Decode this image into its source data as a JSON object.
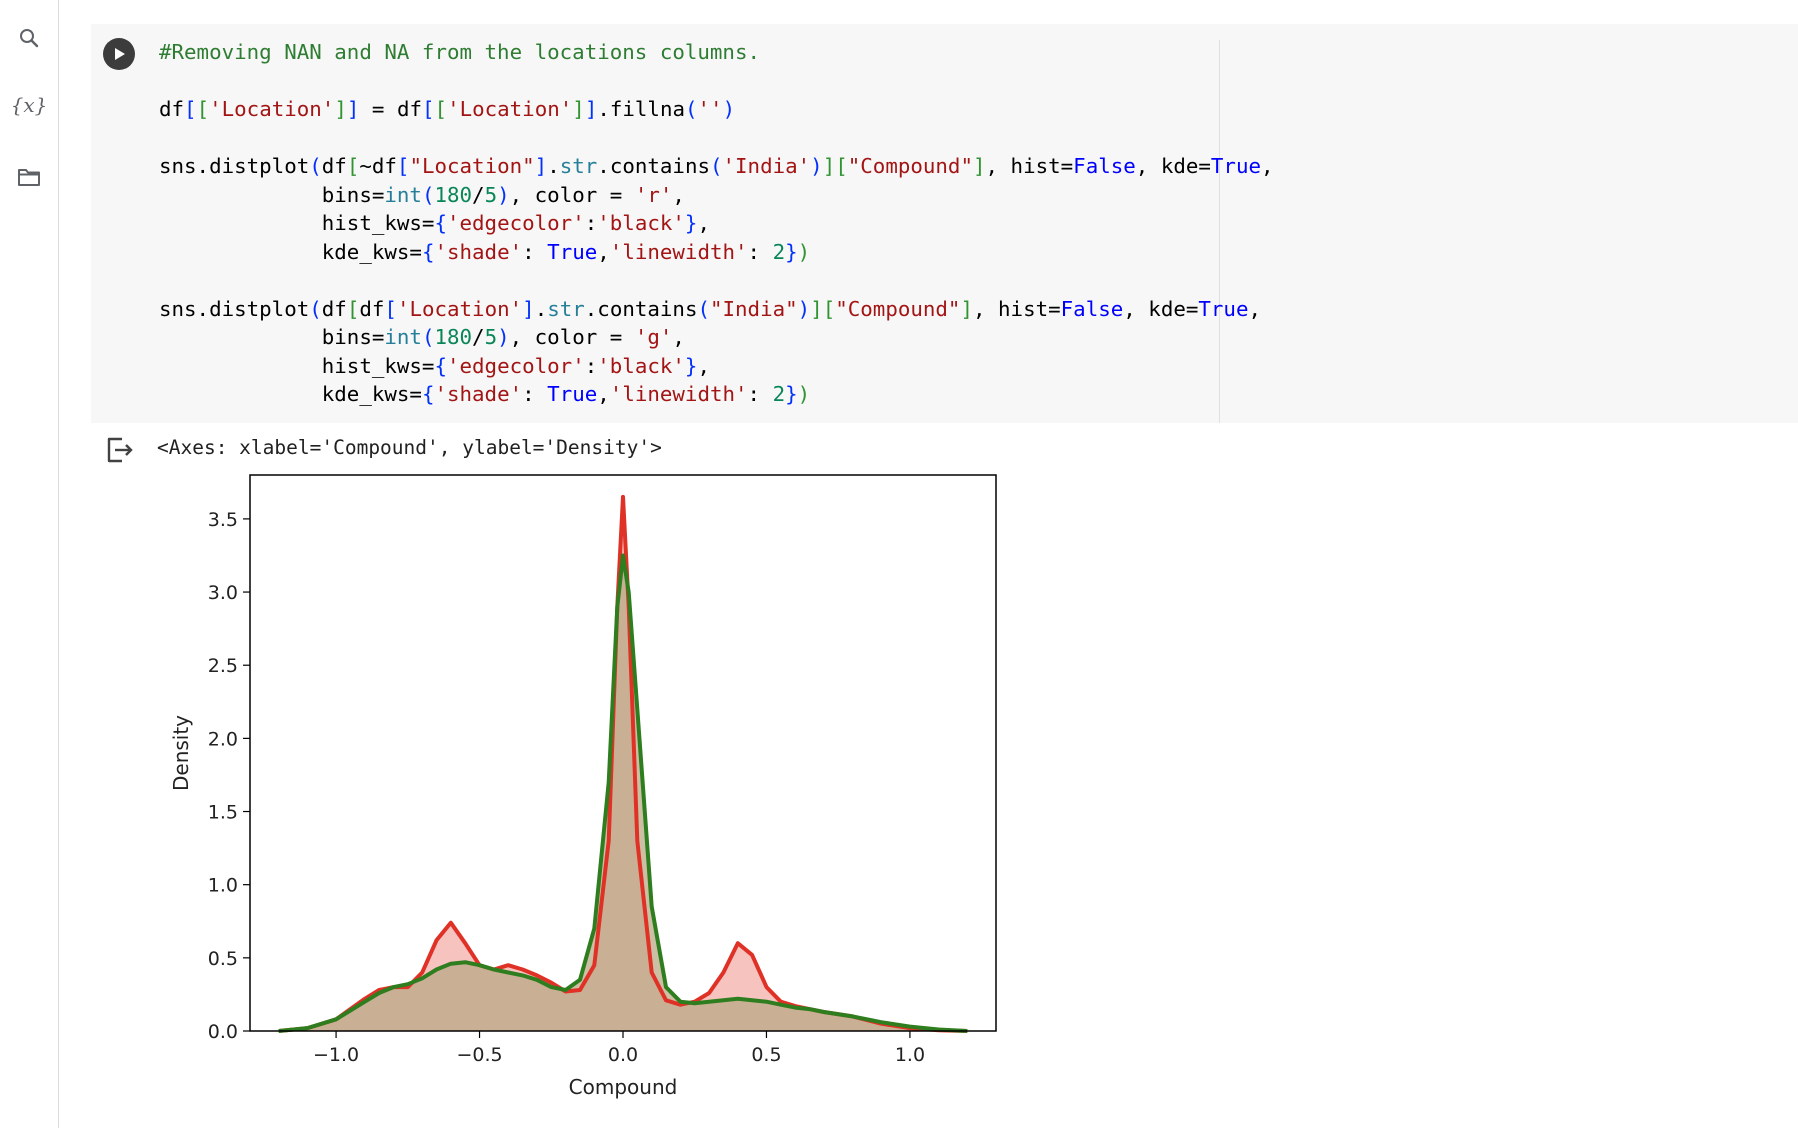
{
  "sidebar": {
    "items": [
      {
        "name": "search-icon"
      },
      {
        "name": "variables-icon",
        "label": "{x}"
      },
      {
        "name": "folder-icon"
      }
    ]
  },
  "cell": {
    "lines": [
      "#Removing NAN and NA from the locations columns.",
      "",
      "df[['Location']] = df[['Location']].fillna('')",
      "",
      "sns.distplot(df[~df[\"Location\"].str.contains('India')][\"Compound\"], hist=False, kde=True,",
      "             bins=int(180/5), color = 'r',",
      "             hist_kws={'edgecolor':'black'},",
      "             kde_kws={'shade': True,'linewidth': 2})",
      "",
      "sns.distplot(df[df['Location'].str.contains(\"India\")][\"Compound\"], hist=False, kde=True,",
      "             bins=int(180/5), color = 'g',",
      "             hist_kws={'edgecolor':'black'},",
      "             kde_kws={'shade': True,'linewidth': 2})"
    ]
  },
  "output": {
    "text": "<Axes: xlabel='Compound', ylabel='Density'>"
  },
  "colors": {
    "red_line": "#e03127",
    "red_fill": "#f4b8b4",
    "green_line": "#2e7d1e",
    "green_fill": "#b9a986"
  },
  "chart_data": {
    "type": "area",
    "xlabel": "Compound",
    "ylabel": "Density",
    "xlim": [
      -1.3,
      1.3
    ],
    "ylim": [
      0,
      3.8
    ],
    "xticks": [
      "−1.0",
      "−0.5",
      "0.0",
      "0.5",
      "1.0"
    ],
    "xtick_values": [
      -1.0,
      -0.5,
      0.0,
      0.5,
      1.0
    ],
    "yticks": [
      "0.0",
      "0.5",
      "1.0",
      "1.5",
      "2.0",
      "2.5",
      "3.0",
      "3.5"
    ],
    "ytick_values": [
      0,
      0.5,
      1.0,
      1.5,
      2.0,
      2.5,
      3.0,
      3.5
    ],
    "grid": false,
    "series": [
      {
        "color": "r",
        "x": [
          -1.2,
          -1.1,
          -1.0,
          -0.9,
          -0.85,
          -0.8,
          -0.75,
          -0.7,
          -0.65,
          -0.6,
          -0.55,
          -0.5,
          -0.45,
          -0.4,
          -0.35,
          -0.3,
          -0.25,
          -0.2,
          -0.15,
          -0.1,
          -0.05,
          -0.02,
          0.0,
          0.02,
          0.05,
          0.1,
          0.15,
          0.2,
          0.25,
          0.3,
          0.35,
          0.4,
          0.45,
          0.5,
          0.55,
          0.6,
          0.65,
          0.7,
          0.8,
          0.9,
          1.0,
          1.1,
          1.2
        ],
        "y": [
          0.0,
          0.02,
          0.08,
          0.22,
          0.28,
          0.3,
          0.3,
          0.4,
          0.62,
          0.74,
          0.6,
          0.45,
          0.42,
          0.45,
          0.42,
          0.38,
          0.33,
          0.27,
          0.28,
          0.45,
          1.3,
          2.9,
          3.65,
          2.9,
          1.3,
          0.4,
          0.21,
          0.18,
          0.2,
          0.26,
          0.4,
          0.6,
          0.52,
          0.3,
          0.2,
          0.17,
          0.15,
          0.13,
          0.1,
          0.05,
          0.02,
          0.005,
          0.0
        ]
      },
      {
        "color": "g",
        "x": [
          -1.2,
          -1.1,
          -1.0,
          -0.9,
          -0.85,
          -0.8,
          -0.75,
          -0.7,
          -0.65,
          -0.6,
          -0.55,
          -0.5,
          -0.45,
          -0.4,
          -0.35,
          -0.3,
          -0.25,
          -0.2,
          -0.15,
          -0.1,
          -0.05,
          -0.02,
          0.0,
          0.02,
          0.05,
          0.1,
          0.15,
          0.2,
          0.25,
          0.3,
          0.35,
          0.4,
          0.45,
          0.5,
          0.55,
          0.6,
          0.65,
          0.7,
          0.8,
          0.9,
          1.0,
          1.1,
          1.2
        ],
        "y": [
          0.0,
          0.02,
          0.08,
          0.2,
          0.26,
          0.3,
          0.32,
          0.36,
          0.42,
          0.46,
          0.47,
          0.45,
          0.42,
          0.4,
          0.38,
          0.35,
          0.3,
          0.28,
          0.35,
          0.7,
          1.7,
          2.9,
          3.25,
          3.0,
          2.2,
          0.85,
          0.3,
          0.2,
          0.19,
          0.2,
          0.21,
          0.22,
          0.21,
          0.2,
          0.18,
          0.16,
          0.15,
          0.13,
          0.1,
          0.06,
          0.03,
          0.01,
          0.0
        ]
      }
    ]
  }
}
